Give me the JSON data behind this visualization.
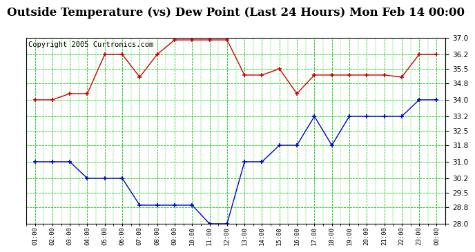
{
  "title": "Outside Temperature (vs) Dew Point (Last 24 Hours) Mon Feb 14 00:00",
  "copyright": "Copyright 2005 Curtronics.com",
  "x_labels": [
    "01:00",
    "02:00",
    "03:00",
    "04:00",
    "05:00",
    "06:00",
    "07:00",
    "08:00",
    "09:00",
    "10:00",
    "11:00",
    "12:00",
    "13:00",
    "14:00",
    "15:00",
    "16:00",
    "17:00",
    "18:00",
    "19:00",
    "20:00",
    "21:00",
    "22:00",
    "23:00",
    "00:00"
  ],
  "outside_temp": [
    34.0,
    34.0,
    34.3,
    34.3,
    36.2,
    36.2,
    35.1,
    36.2,
    36.9,
    36.9,
    36.9,
    36.9,
    35.2,
    35.2,
    35.5,
    34.3,
    35.2,
    35.2,
    35.2,
    35.2,
    35.2,
    35.1,
    36.2,
    36.2
  ],
  "dew_point": [
    31.0,
    31.0,
    31.0,
    30.2,
    30.2,
    30.2,
    28.9,
    28.9,
    28.9,
    28.9,
    28.0,
    28.0,
    31.0,
    31.0,
    31.8,
    31.8,
    33.2,
    31.8,
    33.2,
    33.2,
    33.2,
    33.2,
    34.0,
    34.0
  ],
  "temp_color": "#cc0000",
  "dew_color": "#0000cc",
  "bg_color": "#ffffff",
  "plot_bg": "#ffffff",
  "grid_color": "#00cc00",
  "ylim": [
    28.0,
    37.0
  ],
  "yticks": [
    28.0,
    28.8,
    29.5,
    30.2,
    31.0,
    31.8,
    32.5,
    33.2,
    34.0,
    34.8,
    35.5,
    36.2,
    37.0
  ],
  "title_fontsize": 12,
  "copyright_fontsize": 7.5
}
